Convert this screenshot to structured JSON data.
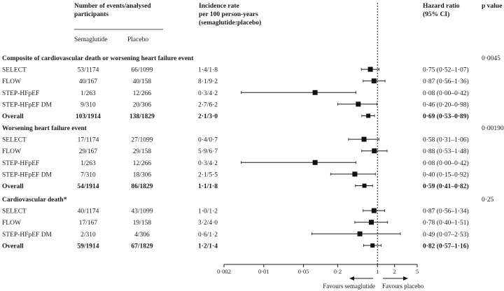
{
  "headers": {
    "events_line1": "Number of events/analysed",
    "events_line2": "participants",
    "semaglutide": "Semaglutide",
    "placebo": "Placebo",
    "incidence_line1": "Incidence rate",
    "incidence_line2": "per 100 person-years",
    "incidence_line3": "(semaglutide:placebo)",
    "hr_line1": "Hazard ratio",
    "hr_line2": "(95% CI)",
    "p_label": "p value"
  },
  "chart_data": {
    "type": "forest",
    "x_scale": "log",
    "xlim": [
      0.002,
      5
    ],
    "x_ticks": [
      "0·002",
      "0·01",
      "0·05",
      "0·2",
      "1",
      "2",
      "5"
    ],
    "x_tick_values": [
      0.002,
      0.01,
      0.05,
      0.2,
      1,
      2,
      5
    ],
    "reference_line": 1,
    "favours_left": "Favours semaglutide",
    "favours_right": "Favours placebo",
    "sections": [
      {
        "title": "Composite of cardiovascular death or worsening heart failure event",
        "p_value": "0·0045",
        "rows": [
          {
            "label": "SELECT",
            "sema": "53/1174",
            "placebo": "66/1099",
            "rate": "1·4/1·8",
            "hr": 0.75,
            "lo": 0.52,
            "hi": 1.07,
            "hr_text": "0·75 (0·52–1·07)",
            "overall": false
          },
          {
            "label": "FLOW",
            "sema": "40/167",
            "placebo": "40/158",
            "rate": "8·1/9·2",
            "hr": 0.87,
            "lo": 0.56,
            "hi": 1.36,
            "hr_text": "0·87 (0·56–1·36)",
            "overall": false
          },
          {
            "label": "STEP-HFpEF",
            "sema": "1/263",
            "placebo": "12/266",
            "rate": "0·3/4·2",
            "hr": 0.08,
            "lo": 0.004,
            "hi": 0.42,
            "hr_text": "0·08 (0·00–0·42)",
            "overall": false
          },
          {
            "label": "STEP-HFpEF DM",
            "sema": "9/310",
            "placebo": "20/306",
            "rate": "2·7/6·2",
            "hr": 0.46,
            "lo": 0.2,
            "hi": 0.98,
            "hr_text": "0·46 (0·20–0·98)",
            "overall": false
          },
          {
            "label": "Overall",
            "sema": "103/1914",
            "placebo": "138/1829",
            "rate": "2·1/3·0",
            "hr": 0.69,
            "lo": 0.53,
            "hi": 0.89,
            "hr_text": "0·69 (0·53–0·89)",
            "overall": true
          }
        ]
      },
      {
        "title": "Worsening heart failure event",
        "p_value": "0·00190",
        "rows": [
          {
            "label": "SELECT",
            "sema": "17/1174",
            "placebo": "27/1099",
            "rate": "0·4/0·7",
            "hr": 0.58,
            "lo": 0.31,
            "hi": 1.06,
            "hr_text": "0·58 (0·31–1·06)",
            "overall": false
          },
          {
            "label": "FLOW",
            "sema": "29/167",
            "placebo": "29/158",
            "rate": "5·9/6·7",
            "hr": 0.88,
            "lo": 0.53,
            "hi": 1.48,
            "hr_text": "0·88 (0·53–1·48)",
            "overall": false
          },
          {
            "label": "STEP-HFpEF",
            "sema": "1/263",
            "placebo": "12/266",
            "rate": "0·3/4·2",
            "hr": 0.08,
            "lo": 0.004,
            "hi": 0.42,
            "hr_text": "0·08 (0·00–0·42)",
            "overall": false
          },
          {
            "label": "STEP-HFpEF DM",
            "sema": "7/310",
            "placebo": "18/306",
            "rate": "2·1/5·5",
            "hr": 0.4,
            "lo": 0.15,
            "hi": 0.92,
            "hr_text": "0·40 (0·15–0·92)",
            "overall": false
          },
          {
            "label": "Overall",
            "sema": "54/1914",
            "placebo": "86/1829",
            "rate": "1·1/1·8",
            "hr": 0.59,
            "lo": 0.41,
            "hi": 0.82,
            "hr_text": "0·59 (0·41–0·82)",
            "overall": true
          }
        ]
      },
      {
        "title": "Cardiovascular death*",
        "p_value": "0·25",
        "rows": [
          {
            "label": "SELECT",
            "sema": "40/1174",
            "placebo": "43/1099",
            "rate": "1·0/1·2",
            "hr": 0.87,
            "lo": 0.56,
            "hi": 1.34,
            "hr_text": "0·87 (0·56–1·34)",
            "overall": false
          },
          {
            "label": "FLOW",
            "sema": "17/167",
            "placebo": "19/158",
            "rate": "3·2/4·0",
            "hr": 0.78,
            "lo": 0.4,
            "hi": 1.51,
            "hr_text": "0·78 (0·40–1·51)",
            "overall": false
          },
          {
            "label": "STEP-HFpEF DM",
            "sema": "2/310",
            "placebo": "4/306",
            "rate": "0·6/1·2",
            "hr": 0.49,
            "lo": 0.07,
            "hi": 2.53,
            "hr_text": "0·49 (0·07–2·53)",
            "overall": false
          },
          {
            "label": "Overall",
            "sema": "59/1914",
            "placebo": "67/1829",
            "rate": "1·2/1·4",
            "hr": 0.82,
            "lo": 0.57,
            "hi": 1.16,
            "hr_text": "0·82 (0·57–1·16)",
            "overall": true
          }
        ]
      }
    ]
  }
}
